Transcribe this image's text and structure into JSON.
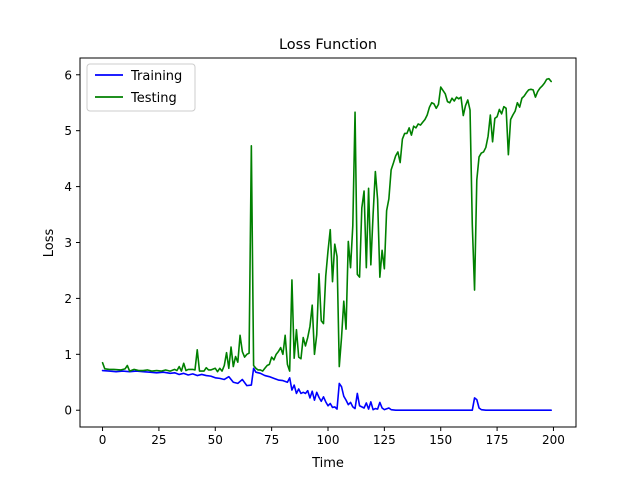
{
  "chart_data": {
    "type": "line",
    "title": "Loss Function",
    "xlabel": "Time",
    "ylabel": "Loss",
    "xlim": [
      -10,
      210
    ],
    "ylim": [
      -0.3,
      6.3
    ],
    "xticks": [
      0,
      25,
      50,
      75,
      100,
      125,
      150,
      175,
      200
    ],
    "yticks": [
      0,
      1,
      2,
      3,
      4,
      5,
      6
    ],
    "grid": false,
    "legend_position": "upper left",
    "series": [
      {
        "name": "Training",
        "color": "#0000ff",
        "points": [
          [
            0,
            0.71
          ],
          [
            3,
            0.7
          ],
          [
            6,
            0.69
          ],
          [
            9,
            0.7
          ],
          [
            12,
            0.69
          ],
          [
            15,
            0.7
          ],
          [
            18,
            0.69
          ],
          [
            21,
            0.68
          ],
          [
            24,
            0.67
          ],
          [
            27,
            0.68
          ],
          [
            30,
            0.66
          ],
          [
            32,
            0.67
          ],
          [
            34,
            0.64
          ],
          [
            36,
            0.66
          ],
          [
            38,
            0.63
          ],
          [
            40,
            0.65
          ],
          [
            42,
            0.62
          ],
          [
            44,
            0.64
          ],
          [
            46,
            0.62
          ],
          [
            48,
            0.61
          ],
          [
            50,
            0.58
          ],
          [
            52,
            0.57
          ],
          [
            54,
            0.55
          ],
          [
            56,
            0.6
          ],
          [
            58,
            0.5
          ],
          [
            60,
            0.48
          ],
          [
            62,
            0.55
          ],
          [
            64,
            0.44
          ],
          [
            66,
            0.45
          ],
          [
            67,
            0.75
          ],
          [
            68,
            0.68
          ],
          [
            70,
            0.66
          ],
          [
            72,
            0.62
          ],
          [
            74,
            0.6
          ],
          [
            76,
            0.57
          ],
          [
            78,
            0.54
          ],
          [
            80,
            0.53
          ],
          [
            82,
            0.5
          ],
          [
            83,
            0.58
          ],
          [
            84,
            0.36
          ],
          [
            85,
            0.45
          ],
          [
            86,
            0.3
          ],
          [
            87,
            0.38
          ],
          [
            88,
            0.3
          ],
          [
            89,
            0.32
          ],
          [
            90,
            0.3
          ],
          [
            91,
            0.35
          ],
          [
            92,
            0.22
          ],
          [
            93,
            0.34
          ],
          [
            94,
            0.18
          ],
          [
            95,
            0.32
          ],
          [
            96,
            0.23
          ],
          [
            97,
            0.16
          ],
          [
            98,
            0.24
          ],
          [
            99,
            0.15
          ],
          [
            100,
            0.08
          ],
          [
            101,
            0.12
          ],
          [
            102,
            0.05
          ],
          [
            103,
            0.06
          ],
          [
            104,
            0.02
          ],
          [
            105,
            0.48
          ],
          [
            106,
            0.42
          ],
          [
            107,
            0.25
          ],
          [
            108,
            0.18
          ],
          [
            109,
            0.1
          ],
          [
            110,
            0.14
          ],
          [
            111,
            0.06
          ],
          [
            112,
            0.03
          ],
          [
            113,
            0.3
          ],
          [
            114,
            0.08
          ],
          [
            115,
            0.06
          ],
          [
            116,
            0.04
          ],
          [
            117,
            0.13
          ],
          [
            118,
            0.02
          ],
          [
            119,
            0.15
          ],
          [
            120,
            0.01
          ],
          [
            121,
            0.03
          ],
          [
            122,
            0.02
          ],
          [
            123,
            0.14
          ],
          [
            124,
            0.04
          ],
          [
            125,
            0.01
          ],
          [
            127,
            0.04
          ],
          [
            128,
            0.01
          ],
          [
            130,
            0.0
          ],
          [
            140,
            0.0
          ],
          [
            150,
            0.0
          ],
          [
            160,
            0.0
          ],
          [
            164,
            0.0
          ],
          [
            165,
            0.22
          ],
          [
            166,
            0.19
          ],
          [
            167,
            0.04
          ],
          [
            168,
            0.01
          ],
          [
            170,
            0.0
          ],
          [
            180,
            0.0
          ],
          [
            190,
            0.0
          ],
          [
            199,
            0.0
          ]
        ]
      },
      {
        "name": "Testing",
        "color": "#008000",
        "points": [
          [
            0,
            0.85
          ],
          [
            1,
            0.74
          ],
          [
            3,
            0.73
          ],
          [
            5,
            0.73
          ],
          [
            8,
            0.72
          ],
          [
            10,
            0.74
          ],
          [
            11,
            0.8
          ],
          [
            12,
            0.7
          ],
          [
            14,
            0.73
          ],
          [
            16,
            0.71
          ],
          [
            18,
            0.71
          ],
          [
            20,
            0.72
          ],
          [
            22,
            0.7
          ],
          [
            24,
            0.71
          ],
          [
            26,
            0.7
          ],
          [
            28,
            0.72
          ],
          [
            30,
            0.7
          ],
          [
            32,
            0.73
          ],
          [
            33,
            0.71
          ],
          [
            34,
            0.78
          ],
          [
            35,
            0.7
          ],
          [
            36,
            0.84
          ],
          [
            37,
            0.71
          ],
          [
            38,
            0.73
          ],
          [
            40,
            0.73
          ],
          [
            41,
            0.72
          ],
          [
            42,
            1.08
          ],
          [
            43,
            0.7
          ],
          [
            45,
            0.7
          ],
          [
            46,
            0.76
          ],
          [
            47,
            0.72
          ],
          [
            48,
            0.72
          ],
          [
            50,
            0.75
          ],
          [
            51,
            0.69
          ],
          [
            52,
            0.75
          ],
          [
            53,
            0.7
          ],
          [
            54,
            0.8
          ],
          [
            55,
            1.03
          ],
          [
            56,
            0.75
          ],
          [
            57,
            1.13
          ],
          [
            58,
            0.78
          ],
          [
            59,
            0.96
          ],
          [
            60,
            0.86
          ],
          [
            61,
            1.34
          ],
          [
            62,
            1.05
          ],
          [
            63,
            0.95
          ],
          [
            64,
            1.0
          ],
          [
            65,
            1.02
          ],
          [
            66,
            4.73
          ],
          [
            67,
            0.8
          ],
          [
            68,
            0.75
          ],
          [
            69,
            0.72
          ],
          [
            70,
            0.72
          ],
          [
            71,
            0.7
          ],
          [
            72,
            0.75
          ],
          [
            73,
            0.8
          ],
          [
            74,
            0.82
          ],
          [
            75,
            0.95
          ],
          [
            76,
            0.9
          ],
          [
            77,
            1.0
          ],
          [
            78,
            1.05
          ],
          [
            79,
            1.12
          ],
          [
            80,
            1.0
          ],
          [
            81,
            1.34
          ],
          [
            82,
            0.82
          ],
          [
            83,
            0.7
          ],
          [
            84,
            2.33
          ],
          [
            85,
            0.93
          ],
          [
            86,
            1.44
          ],
          [
            87,
            0.95
          ],
          [
            88,
            0.92
          ],
          [
            89,
            1.3
          ],
          [
            90,
            1.15
          ],
          [
            91,
            1.3
          ],
          [
            92,
            1.5
          ],
          [
            93,
            1.88
          ],
          [
            94,
            1.0
          ],
          [
            95,
            1.35
          ],
          [
            96,
            2.44
          ],
          [
            97,
            1.6
          ],
          [
            98,
            1.55
          ],
          [
            99,
            2.4
          ],
          [
            100,
            2.85
          ],
          [
            101,
            3.23
          ],
          [
            102,
            2.3
          ],
          [
            103,
            2.97
          ],
          [
            104,
            2.75
          ],
          [
            105,
            0.78
          ],
          [
            106,
            1.3
          ],
          [
            107,
            1.95
          ],
          [
            108,
            1.45
          ],
          [
            109,
            3.02
          ],
          [
            110,
            2.55
          ],
          [
            111,
            3.3
          ],
          [
            112,
            5.33
          ],
          [
            113,
            2.43
          ],
          [
            114,
            2.38
          ],
          [
            115,
            3.62
          ],
          [
            116,
            3.92
          ],
          [
            117,
            2.55
          ],
          [
            118,
            3.97
          ],
          [
            119,
            2.6
          ],
          [
            120,
            3.5
          ],
          [
            121,
            4.27
          ],
          [
            122,
            3.77
          ],
          [
            123,
            2.38
          ],
          [
            124,
            2.86
          ],
          [
            125,
            2.53
          ],
          [
            126,
            3.57
          ],
          [
            127,
            3.78
          ],
          [
            128,
            4.3
          ],
          [
            129,
            4.42
          ],
          [
            130,
            4.55
          ],
          [
            131,
            4.62
          ],
          [
            132,
            4.43
          ],
          [
            133,
            4.85
          ],
          [
            134,
            4.95
          ],
          [
            135,
            4.95
          ],
          [
            136,
            5.05
          ],
          [
            137,
            4.92
          ],
          [
            138,
            5.08
          ],
          [
            139,
            5.05
          ],
          [
            140,
            5.12
          ],
          [
            141,
            5.1
          ],
          [
            142,
            5.15
          ],
          [
            143,
            5.2
          ],
          [
            144,
            5.28
          ],
          [
            145,
            5.42
          ],
          [
            146,
            5.5
          ],
          [
            147,
            5.48
          ],
          [
            148,
            5.4
          ],
          [
            149,
            5.47
          ],
          [
            150,
            5.78
          ],
          [
            151,
            5.72
          ],
          [
            152,
            5.66
          ],
          [
            153,
            5.52
          ],
          [
            154,
            5.5
          ],
          [
            155,
            5.58
          ],
          [
            156,
            5.53
          ],
          [
            157,
            5.6
          ],
          [
            158,
            5.57
          ],
          [
            159,
            5.6
          ],
          [
            160,
            5.27
          ],
          [
            161,
            5.45
          ],
          [
            162,
            5.55
          ],
          [
            163,
            5.37
          ],
          [
            164,
            3.32
          ],
          [
            165,
            2.15
          ],
          [
            166,
            4.12
          ],
          [
            167,
            4.53
          ],
          [
            168,
            4.6
          ],
          [
            169,
            4.62
          ],
          [
            170,
            4.7
          ],
          [
            171,
            4.9
          ],
          [
            172,
            5.28
          ],
          [
            173,
            4.8
          ],
          [
            174,
            5.22
          ],
          [
            175,
            5.25
          ],
          [
            176,
            5.38
          ],
          [
            177,
            5.3
          ],
          [
            178,
            5.43
          ],
          [
            179,
            5.4
          ],
          [
            180,
            4.57
          ],
          [
            181,
            5.2
          ],
          [
            182,
            5.28
          ],
          [
            183,
            5.35
          ],
          [
            184,
            5.5
          ],
          [
            185,
            5.42
          ],
          [
            186,
            5.58
          ],
          [
            187,
            5.62
          ],
          [
            188,
            5.68
          ],
          [
            189,
            5.73
          ],
          [
            190,
            5.74
          ],
          [
            191,
            5.73
          ],
          [
            192,
            5.6
          ],
          [
            193,
            5.7
          ],
          [
            194,
            5.76
          ],
          [
            195,
            5.8
          ],
          [
            196,
            5.85
          ],
          [
            197,
            5.92
          ],
          [
            198,
            5.93
          ],
          [
            199,
            5.88
          ]
        ]
      }
    ]
  }
}
